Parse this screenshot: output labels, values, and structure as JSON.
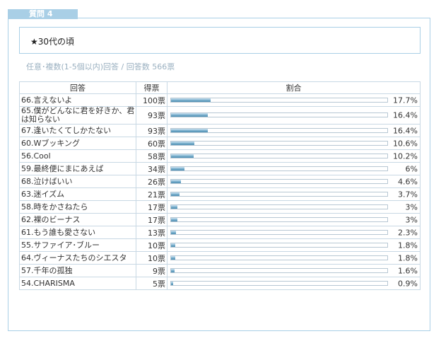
{
  "tab_label": "質問 4",
  "question": "★30代の頃",
  "meta": "任意･複数(1-5個以内)回答 / 回答数  566票",
  "headers": {
    "answer": "回答",
    "votes": "得票",
    "ratio": "割合"
  },
  "rows": [
    {
      "answer": "66.言えないよ",
      "votes": "100票",
      "percent": "17.7%",
      "fraction": 0.177
    },
    {
      "answer": "65.僕がどんなに君を好きか、君は知らない",
      "votes": "93票",
      "percent": "16.4%",
      "fraction": 0.164
    },
    {
      "answer": "67.逢いたくてしかたない",
      "votes": "93票",
      "percent": "16.4%",
      "fraction": 0.164
    },
    {
      "answer": "60.Wブッキング",
      "votes": "60票",
      "percent": "10.6%",
      "fraction": 0.106
    },
    {
      "answer": "56.Cool",
      "votes": "58票",
      "percent": "10.2%",
      "fraction": 0.102
    },
    {
      "answer": "59.最終便にまにあえば",
      "votes": "34票",
      "percent": "6%",
      "fraction": 0.06
    },
    {
      "answer": "68.泣けばいい",
      "votes": "26票",
      "percent": "4.6%",
      "fraction": 0.046
    },
    {
      "answer": "63.迷イズム",
      "votes": "21票",
      "percent": "3.7%",
      "fraction": 0.037
    },
    {
      "answer": "58.時をかさねたら",
      "votes": "17票",
      "percent": "3%",
      "fraction": 0.03
    },
    {
      "answer": "62.裸のビーナス",
      "votes": "17票",
      "percent": "3%",
      "fraction": 0.03
    },
    {
      "answer": "61.もう誰も愛さない",
      "votes": "13票",
      "percent": "2.3%",
      "fraction": 0.023
    },
    {
      "answer": "55.サファイア･ブルー",
      "votes": "10票",
      "percent": "1.8%",
      "fraction": 0.018
    },
    {
      "answer": "64.ヴィーナスたちのシエスタ",
      "votes": "10票",
      "percent": "1.8%",
      "fraction": 0.018
    },
    {
      "answer": "57.千年の孤独",
      "votes": "9票",
      "percent": "1.6%",
      "fraction": 0.016
    },
    {
      "answer": "54.CHARISMA",
      "votes": "5票",
      "percent": "0.9%",
      "fraction": 0.009
    }
  ]
}
